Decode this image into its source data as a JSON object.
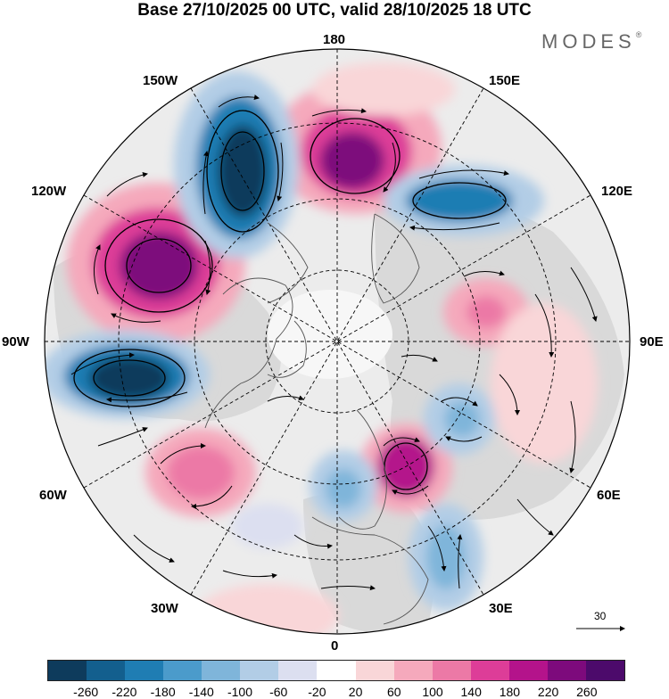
{
  "title": "Base 27/10/2025 00 UTC, valid 28/10/2025 18 UTC",
  "brand": {
    "name": "MODES",
    "mark": "®"
  },
  "longitude_labels": {
    "top": "180",
    "bottom": "0",
    "left": "90W",
    "right": "90E",
    "upper_left_1": "150W",
    "upper_left_2": "120W",
    "lower_left_1": "60W",
    "lower_left_2": "30W",
    "upper_right_1": "150E",
    "upper_right_2": "120E",
    "lower_right_1": "60E",
    "lower_right_2": "30E"
  },
  "reference_vector": {
    "value": "30"
  },
  "colorbar": {
    "ticks": [
      "-260",
      "-220",
      "-180",
      "-140",
      "-100",
      "-60",
      "-20",
      "20",
      "60",
      "100",
      "140",
      "180",
      "220",
      "260"
    ],
    "colors": [
      "#0e3b5c",
      "#135f8e",
      "#1f7db3",
      "#4b9bcb",
      "#7fb5da",
      "#b2cde6",
      "#dcdff0",
      "#ffffff",
      "#f9d6d8",
      "#f5a9bc",
      "#ec79a6",
      "#dd3d98",
      "#b4138b",
      "#7d0a7c",
      "#4c0a6b"
    ]
  },
  "colors": {
    "land": "#d6d6d6",
    "ocean": "#ffffff",
    "coast": "#555555",
    "grid": "#000000"
  }
}
